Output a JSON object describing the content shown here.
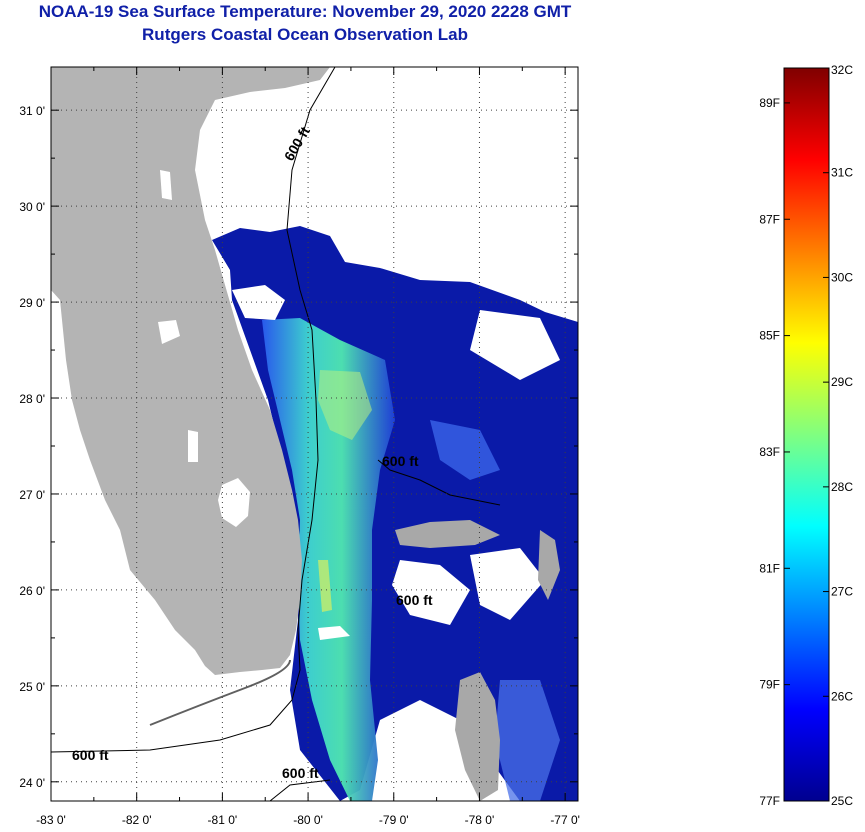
{
  "header": {
    "title": "NOAA-19 Sea Surface Temperature:  November 29, 2020 2228 GMT",
    "subtitle": "Rutgers Coastal Ocean Observation Lab"
  },
  "axes": {
    "lon_ticks": [
      "-83 0'",
      "-82 0'",
      "-81 0'",
      "-80 0'",
      "-79 0'",
      "-78 0'",
      "-77 0'"
    ],
    "lat_ticks": [
      "31 0'",
      "30 0'",
      "29 0'",
      "28 0'",
      "27 0'",
      "26 0'",
      "25 0'",
      "24 0'"
    ],
    "lon_range": [
      -83.0,
      -76.85
    ],
    "lat_range": [
      23.8,
      31.45
    ],
    "grid": "dotted"
  },
  "contours": {
    "depth_label": "600 ft",
    "label_count": 5
  },
  "colorbar": {
    "celsius_ticks": [
      "32C",
      "31C",
      "30C",
      "29C",
      "28C",
      "27C",
      "26C",
      "25C"
    ],
    "fahrenheit_ticks": [
      "89F",
      "87F",
      "85F",
      "83F",
      "81F",
      "79F",
      "77F"
    ],
    "range_c": [
      25,
      32
    ],
    "colormap": "jet"
  },
  "colors": {
    "title": "#1020a8",
    "land": "#b4b4b4",
    "cloud": "#ffffff",
    "cold_sst": "#0a1aa8",
    "warm_sst": "#40d8c0"
  }
}
